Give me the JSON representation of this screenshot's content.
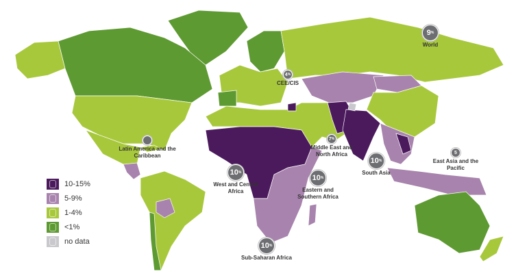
{
  "colors": {
    "c10_15": "#4b1a5c",
    "c5_9": "#a883ad",
    "c1_4": "#a8c83c",
    "clt1": "#5e9a32",
    "nodata": "#c9c9cd",
    "badge": "#6d6e71"
  },
  "legend": [
    {
      "label": "10-15%",
      "color": "#4b1a5c",
      "icon": "intestine-icon"
    },
    {
      "label": "5-9%",
      "color": "#a883ad",
      "icon": "intestine-icon"
    },
    {
      "label": "1-4%",
      "color": "#a8c83c",
      "icon": "intestine-icon"
    },
    {
      "label": "<1%",
      "color": "#5e9a32",
      "icon": "intestine-icon"
    },
    {
      "label": "no data",
      "color": "#c9c9cd",
      "icon": "intestine-icon"
    }
  ],
  "regions": [
    {
      "name": "World",
      "value": "9",
      "unit": "%"
    },
    {
      "name": "CEE/CIS",
      "value": "4",
      "unit": "%"
    },
    {
      "name": "Latin America and the Caribbean",
      "value": "",
      "unit": ""
    },
    {
      "name": "Middle East and North Africa",
      "value": "7",
      "unit": "%"
    },
    {
      "name": "South Asia",
      "value": "10",
      "unit": "%"
    },
    {
      "name": "East Asia and the Pacific",
      "value": "5",
      "unit": ""
    },
    {
      "name": "West and Central Africa",
      "value": "10",
      "unit": "%"
    },
    {
      "name": "Eastern and Southern Africa",
      "value": "10",
      "unit": "%"
    },
    {
      "name": "Sub-Saharan Africa",
      "value": "10",
      "unit": "%"
    }
  ]
}
